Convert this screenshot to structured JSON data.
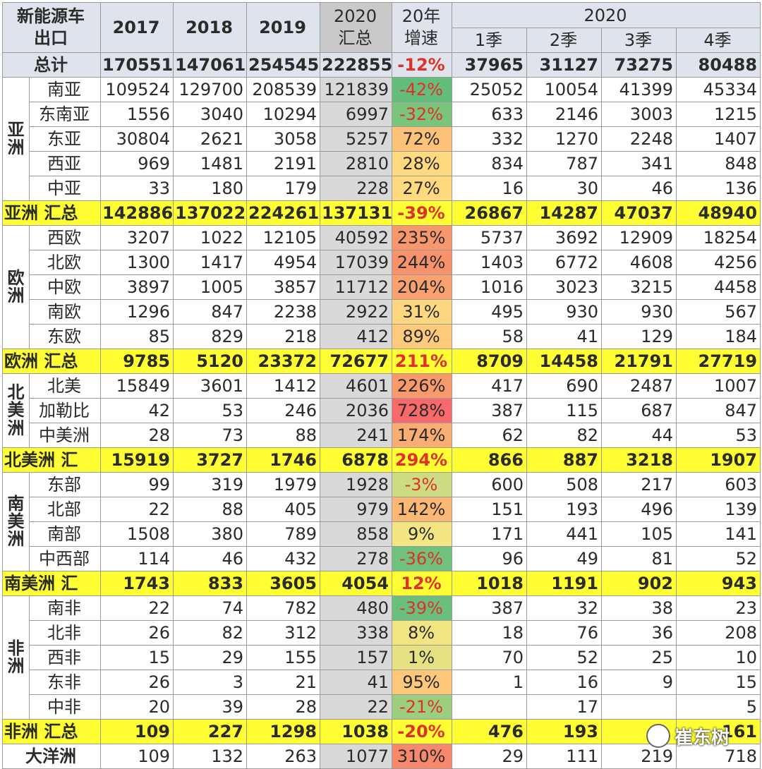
{
  "header": {
    "corner": "新能源车\n出口",
    "years": [
      "2017",
      "2018",
      "2019"
    ],
    "sum_label": "2020\n汇总",
    "growth_label": "20年\n增速",
    "quarter_group": "2020",
    "quarters": [
      "1季",
      "2季",
      "3季",
      "4季"
    ]
  },
  "colors": {
    "header_bg": "#dfe3ec",
    "subtotal_bg": "#ffff33",
    "sum_col_bg": "#d9d9d9",
    "negative_text": "#e0302a"
  },
  "total": {
    "label": "总计",
    "y2017": "170551",
    "y2018": "147061",
    "y2019": "254545",
    "y2020": "222855",
    "growth": "-12%",
    "q1": "37965",
    "q2": "31127",
    "q3": "73275",
    "q4": "80488"
  },
  "groups": [
    {
      "name": "亚\n洲",
      "rows": [
        {
          "region": "南亚",
          "y2017": "109524",
          "y2018": "129700",
          "y2019": "208539",
          "y2020": "121839",
          "growth": "-42%",
          "growth_color": "#63be7b",
          "q1": "25052",
          "q2": "10054",
          "q3": "41399",
          "q4": "45334"
        },
        {
          "region": "东南亚",
          "y2017": "1556",
          "y2018": "3040",
          "y2019": "10294",
          "y2020": "6997",
          "growth": "-32%",
          "growth_color": "#7bc47c",
          "q1": "633",
          "q2": "2146",
          "q3": "3003",
          "q4": "1215"
        },
        {
          "region": "东亚",
          "y2017": "30804",
          "y2018": "2621",
          "y2019": "3058",
          "y2020": "5257",
          "growth": "72%",
          "growth_color": "#fcc27a",
          "q1": "332",
          "q2": "1270",
          "q3": "2248",
          "q4": "1407"
        },
        {
          "region": "西亚",
          "y2017": "969",
          "y2018": "1481",
          "y2019": "2191",
          "y2020": "2810",
          "growth": "28%",
          "growth_color": "#fed980",
          "q1": "834",
          "q2": "787",
          "q3": "341",
          "q4": "848"
        },
        {
          "region": "中亚",
          "y2017": "33",
          "y2018": "180",
          "y2019": "179",
          "y2020": "228",
          "growth": "27%",
          "growth_color": "#fed980",
          "q1": "16",
          "q2": "30",
          "q3": "46",
          "q4": "136"
        }
      ],
      "subtotal": {
        "label": "亚洲 汇总",
        "y2017": "142886",
        "y2018": "137022",
        "y2019": "224261",
        "y2020": "137131",
        "growth": "-39%",
        "q1": "26867",
        "q2": "14287",
        "q3": "47037",
        "q4": "48940"
      }
    },
    {
      "name": "欧\n洲",
      "rows": [
        {
          "region": "西欧",
          "y2017": "3207",
          "y2018": "1022",
          "y2019": "12105",
          "y2020": "40592",
          "growth": "235%",
          "growth_color": "#f8966d",
          "q1": "5737",
          "q2": "3692",
          "q3": "12909",
          "q4": "18254"
        },
        {
          "region": "北欧",
          "y2017": "1300",
          "y2018": "1417",
          "y2019": "4954",
          "y2020": "17039",
          "growth": "244%",
          "growth_color": "#f8926c",
          "q1": "1403",
          "q2": "6772",
          "q3": "4608",
          "q4": "4256"
        },
        {
          "region": "中欧",
          "y2017": "3897",
          "y2018": "1005",
          "y2019": "3857",
          "y2020": "11712",
          "growth": "204%",
          "growth_color": "#f9a26f",
          "q1": "1016",
          "q2": "3023",
          "q3": "3215",
          "q4": "4458"
        },
        {
          "region": "南欧",
          "y2017": "1296",
          "y2018": "847",
          "y2019": "2238",
          "y2020": "2922",
          "growth": "31%",
          "growth_color": "#fed880",
          "q1": "495",
          "q2": "930",
          "q3": "930",
          "q4": "567"
        },
        {
          "region": "东欧",
          "y2017": "85",
          "y2018": "829",
          "y2019": "218",
          "y2020": "412",
          "growth": "89%",
          "growth_color": "#fdc97b",
          "q1": "58",
          "q2": "41",
          "q3": "129",
          "q4": "184"
        }
      ],
      "subtotal": {
        "label": "欧洲 汇总",
        "y2017": "9785",
        "y2018": "5120",
        "y2019": "23372",
        "y2020": "72677",
        "growth": "211%",
        "q1": "8709",
        "q2": "14458",
        "q3": "21791",
        "q4": "27719"
      }
    },
    {
      "name": "北\n美\n洲",
      "rows": [
        {
          "region": "北美",
          "y2017": "15849",
          "y2018": "3601",
          "y2019": "1412",
          "y2020": "4601",
          "growth": "226%",
          "growth_color": "#f99a6e",
          "q1": "417",
          "q2": "690",
          "q3": "2487",
          "q4": "1007"
        },
        {
          "region": "加勒比",
          "y2017": "42",
          "y2018": "53",
          "y2019": "246",
          "y2020": "2036",
          "growth": "728%",
          "growth_color": "#f8696b",
          "q1": "387",
          "q2": "115",
          "q3": "687",
          "q4": "847"
        },
        {
          "region": "中美洲",
          "y2017": "28",
          "y2018": "73",
          "y2019": "88",
          "y2020": "241",
          "growth": "174%",
          "growth_color": "#faad72",
          "q1": "62",
          "q2": "82",
          "q3": "44",
          "q4": "53"
        }
      ],
      "subtotal": {
        "label": "北美洲 汇",
        "y2017": "15919",
        "y2018": "3727",
        "y2019": "1746",
        "y2020": "6878",
        "growth": "294%",
        "q1": "866",
        "q2": "887",
        "q3": "3218",
        "q4": "1907"
      }
    },
    {
      "name": "南\n美\n洲",
      "rows": [
        {
          "region": "东部",
          "y2017": "99",
          "y2018": "319",
          "y2019": "1979",
          "y2020": "1928",
          "growth": "-3%",
          "growth_color": "#cddc82",
          "q1": "600",
          "q2": "508",
          "q3": "217",
          "q4": "603"
        },
        {
          "region": "北部",
          "y2017": "22",
          "y2018": "88",
          "y2019": "405",
          "y2020": "979",
          "growth": "142%",
          "growth_color": "#fbb875",
          "q1": "151",
          "q2": "193",
          "q3": "496",
          "q4": "139"
        },
        {
          "region": "南部",
          "y2017": "1508",
          "y2018": "380",
          "y2019": "789",
          "y2020": "858",
          "growth": "9%",
          "growth_color": "#f3e583",
          "q1": "171",
          "q2": "441",
          "q3": "105",
          "q4": "141"
        },
        {
          "region": "中西部",
          "y2017": "114",
          "y2018": "46",
          "y2019": "432",
          "y2020": "278",
          "growth": "-36%",
          "growth_color": "#70c17c",
          "q1": "96",
          "q2": "49",
          "q3": "81",
          "q4": "52"
        }
      ],
      "subtotal": {
        "label": "南美洲 汇",
        "y2017": "1743",
        "y2018": "833",
        "y2019": "3605",
        "y2020": "4054",
        "growth": "12%",
        "q1": "1018",
        "q2": "1191",
        "q3": "902",
        "q4": "943"
      }
    },
    {
      "name": "非\n洲",
      "rows": [
        {
          "region": "南非",
          "y2017": "22",
          "y2018": "74",
          "y2019": "782",
          "y2020": "480",
          "growth": "-39%",
          "growth_color": "#69bf7b",
          "q1": "387",
          "q2": "32",
          "q3": "38",
          "q4": "23"
        },
        {
          "region": "北非",
          "y2017": "26",
          "y2018": "82",
          "y2019": "312",
          "y2020": "338",
          "growth": "8%",
          "growth_color": "#f1e583",
          "q1": "18",
          "q2": "76",
          "q3": "36",
          "q4": "208"
        },
        {
          "region": "西非",
          "y2017": "15",
          "y2018": "29",
          "y2019": "155",
          "y2020": "157",
          "growth": "1%",
          "growth_color": "#e6e283",
          "q1": "70",
          "q2": "52",
          "q3": "25",
          "q4": "10"
        },
        {
          "region": "东非",
          "y2017": "26",
          "y2018": "3",
          "y2019": "21",
          "y2020": "41",
          "growth": "95%",
          "growth_color": "#fdc87b",
          "q1": "1",
          "q2": "16",
          "q3": "9",
          "q4": "15"
        },
        {
          "region": "中非",
          "y2017": "20",
          "y2018": "39",
          "y2019": "28",
          "y2020": "22",
          "growth": "-21%",
          "growth_color": "#9dcd7f",
          "q1": "",
          "q2": "17",
          "q3": "",
          "q4": "5"
        }
      ],
      "subtotal": {
        "label": "非洲 汇总",
        "y2017": "109",
        "y2018": "227",
        "y2019": "1298",
        "y2020": "1038",
        "growth": "-20%",
        "q1": "476",
        "q2": "193",
        "q3": "",
        "q4": "161"
      }
    }
  ],
  "ocean": {
    "label": "大洋洲",
    "y2017": "109",
    "y2018": "132",
    "y2019": "263",
    "y2020": "1077",
    "growth": "310%",
    "growth_color": "#f8886c",
    "q1": "29",
    "q2": "111",
    "q3": "219",
    "q4": "718"
  },
  "watermark": {
    "text": "崔东树",
    "icon": "wechat-icon"
  }
}
